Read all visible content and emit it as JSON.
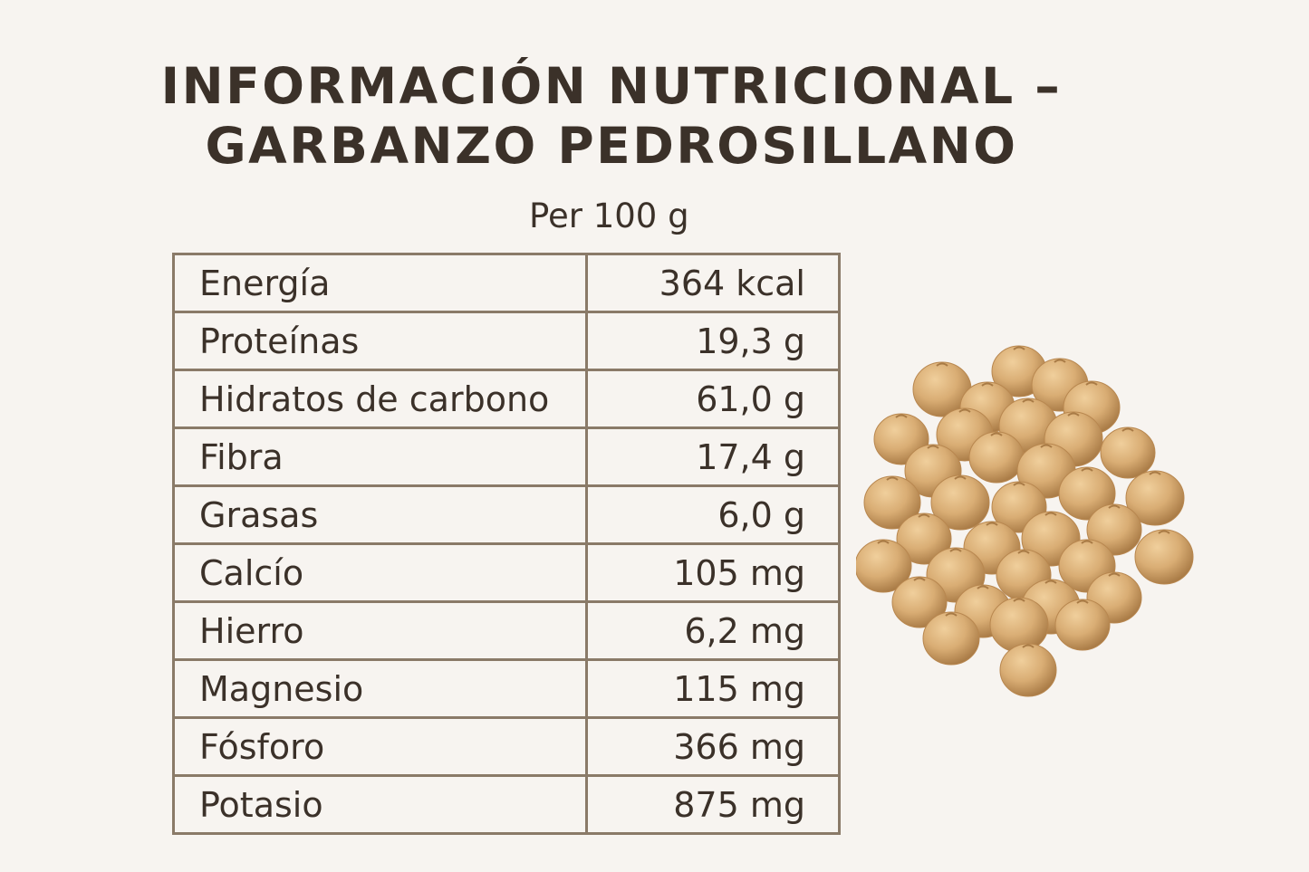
{
  "title": {
    "line1": "INFORMACIÓN NUTRICIONAL –",
    "line2": "GARBANZO PEDROSILLANO"
  },
  "subtitle": "Per 100 g",
  "nutrients": [
    {
      "name": "Energía",
      "value": "364 kcal"
    },
    {
      "name": "Proteínas",
      "value": "19,3 g"
    },
    {
      "name": "Hidratos de carbono",
      "value": "61,0 g"
    },
    {
      "name": "Fibra",
      "value": "17,4 g"
    },
    {
      "name": "Grasas",
      "value": "6,0 g"
    },
    {
      "name": "Calcío",
      "value": "105 mg"
    },
    {
      "name": "Hierro",
      "value": "6,2 mg"
    },
    {
      "name": "Magnesio",
      "value": "115 mg"
    },
    {
      "name": "Fósforo",
      "value": "366 mg"
    },
    {
      "name": "Potasio",
      "value": "875 mg"
    }
  ],
  "colors": {
    "background": "#f7f4f0",
    "text": "#3b3129",
    "border": "#8a7a68",
    "chickpea": "#d9ad74"
  },
  "image_subject": "chickpeas-pile"
}
